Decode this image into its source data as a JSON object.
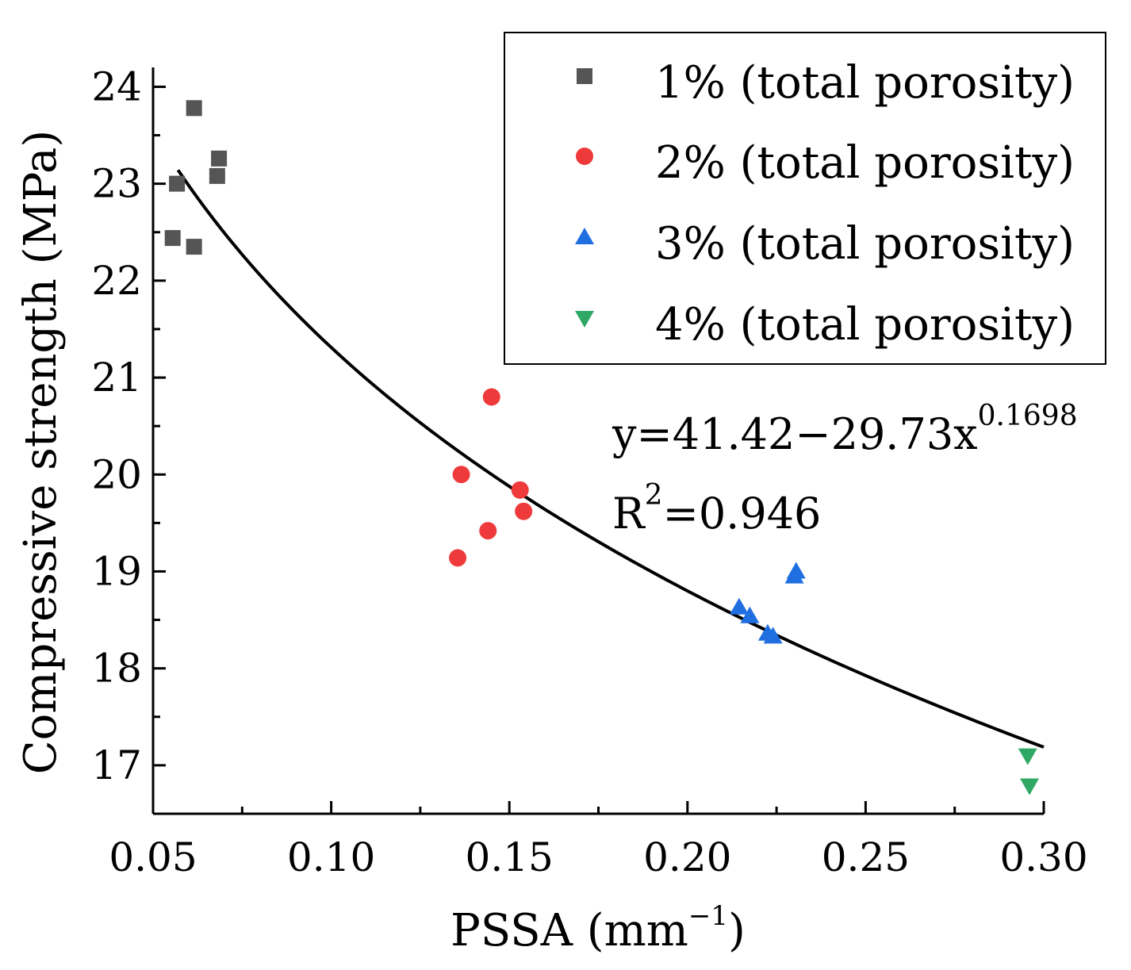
{
  "chart_data": {
    "type": "scatter",
    "title": "",
    "xlabel": "PSSA (mm",
    "xlabel_sup": "−1",
    "xlabel_end": ")",
    "ylabel": "Compressive strength (MPa)",
    "xlim": [
      0.05,
      0.3
    ],
    "ylim": [
      16.5,
      24.2
    ],
    "x_ticks": [
      0.05,
      0.1,
      0.15,
      0.2,
      0.25,
      0.3
    ],
    "x_tick_labels": [
      "0.05",
      "0.10",
      "0.15",
      "0.20",
      "0.25",
      "0.30"
    ],
    "y_ticks": [
      17,
      18,
      19,
      20,
      21,
      22,
      23,
      24
    ],
    "y_tick_labels": [
      "17",
      "18",
      "19",
      "20",
      "21",
      "22",
      "23",
      "24"
    ],
    "series": [
      {
        "name": "1% (total porosity)",
        "marker": "square",
        "color": "#555555",
        "points": [
          {
            "x": 0.0615,
            "y": 23.78
          },
          {
            "x": 0.0567,
            "y": 23.0
          },
          {
            "x": 0.0555,
            "y": 22.44
          },
          {
            "x": 0.0615,
            "y": 22.35
          },
          {
            "x": 0.0685,
            "y": 23.26
          },
          {
            "x": 0.068,
            "y": 23.08
          }
        ]
      },
      {
        "name": "2% (total porosity)",
        "marker": "circle",
        "color": "#ee3a3a",
        "points": [
          {
            "x": 0.145,
            "y": 20.8
          },
          {
            "x": 0.1365,
            "y": 20.0
          },
          {
            "x": 0.153,
            "y": 19.84
          },
          {
            "x": 0.154,
            "y": 19.62
          },
          {
            "x": 0.144,
            "y": 19.42
          },
          {
            "x": 0.1355,
            "y": 19.14
          }
        ]
      },
      {
        "name": "3% (total porosity)",
        "marker": "triangle-up",
        "color": "#1f6fe0",
        "points": [
          {
            "x": 0.2305,
            "y": 19.0
          },
          {
            "x": 0.23,
            "y": 18.95
          },
          {
            "x": 0.2145,
            "y": 18.63
          },
          {
            "x": 0.2175,
            "y": 18.54
          },
          {
            "x": 0.2225,
            "y": 18.36
          },
          {
            "x": 0.224,
            "y": 18.33
          }
        ]
      },
      {
        "name": "4% (total porosity)",
        "marker": "triangle-down",
        "color": "#2fa866",
        "points": [
          {
            "x": 0.2955,
            "y": 17.1
          },
          {
            "x": 0.296,
            "y": 16.79
          }
        ]
      }
    ],
    "fit": {
      "equation_prefix": "y=41.42−29.73x",
      "equation_exponent": "0.1698",
      "r2_base": "R",
      "r2_sup": "2",
      "r2_value": "=0.946",
      "a": 41.42,
      "b": 29.73,
      "c": 0.1698,
      "x_range": [
        0.057,
        0.3
      ],
      "color": "#000000"
    },
    "legend_position": "top-right",
    "grid": false
  }
}
